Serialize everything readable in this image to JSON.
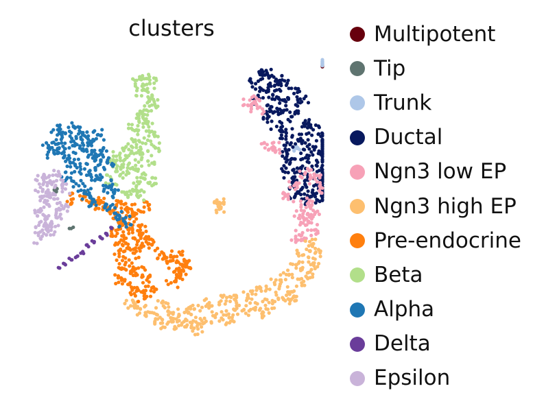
{
  "chart_data": {
    "type": "scatter",
    "title": "clusters",
    "xlabel": "",
    "ylabel": "",
    "axes_visible": false,
    "grid": false,
    "legend_position": "right",
    "series": [
      {
        "name": "Multipotent",
        "color": "#67000d",
        "points": [
          [
            8.3,
            8.1
          ],
          [
            8.35,
            8.05
          ]
        ]
      },
      {
        "name": "Tip",
        "color": "#5f7470",
        "points": [
          [
            -6.2,
            0.6
          ],
          [
            -6.25,
            0.5
          ],
          [
            -4.7,
            0.4
          ],
          [
            -5.4,
            -1.8
          ]
        ]
      },
      {
        "name": "Trunk",
        "color": "#aec7e8",
        "points": [
          [
            7.8,
            8.3
          ],
          [
            8.0,
            8.35
          ],
          [
            8.15,
            8.2
          ],
          [
            8.3,
            8.25
          ],
          [
            7.9,
            8.15
          ],
          [
            6.3,
            3.2
          ],
          [
            6.4,
            3.1
          ],
          [
            6.2,
            3.0
          ]
        ]
      },
      {
        "name": "Ductal",
        "color": "#08195e",
        "points": [
          [
            4.5,
            7.7
          ],
          [
            4.8,
            7.6
          ],
          [
            5.3,
            7.2
          ],
          [
            5.8,
            6.9
          ],
          [
            4.2,
            7.0
          ],
          [
            4.6,
            6.6
          ],
          [
            5.1,
            6.3
          ],
          [
            5.6,
            6.0
          ],
          [
            6.2,
            6.4
          ],
          [
            6.6,
            5.9
          ],
          [
            5.0,
            5.6
          ],
          [
            5.5,
            5.2
          ],
          [
            6.1,
            5.0
          ],
          [
            6.7,
            4.6
          ],
          [
            7.2,
            4.2
          ],
          [
            7.6,
            3.8
          ],
          [
            8.0,
            3.5
          ],
          [
            5.3,
            4.4
          ],
          [
            5.8,
            4.0
          ],
          [
            6.4,
            3.6
          ],
          [
            7.0,
            3.3
          ],
          [
            7.5,
            2.9
          ],
          [
            5.6,
            2.6
          ],
          [
            6.0,
            2.2
          ],
          [
            6.5,
            1.8
          ],
          [
            7.0,
            1.4
          ],
          [
            7.5,
            1.0
          ],
          [
            7.9,
            1.5
          ],
          [
            6.1,
            1.0
          ],
          [
            6.6,
            0.6
          ],
          [
            7.2,
            0.3
          ],
          [
            7.7,
            0.1
          ],
          [
            5.9,
            1.6
          ],
          [
            6.8,
            2.5
          ],
          [
            7.4,
            2.0
          ],
          [
            7.9,
            2.6
          ],
          [
            8.2,
            3.2
          ],
          [
            8.4,
            1.1
          ],
          [
            5.2,
            6.9
          ],
          [
            4.9,
            5.0
          ],
          [
            6.0,
            3.3
          ],
          [
            6.3,
            0.3
          ],
          [
            7.0,
            0.0
          ],
          [
            8.1,
            0.5
          ],
          [
            4.4,
            6.1
          ]
        ]
      },
      {
        "name": "Ngn3 low EP",
        "color": "#f7a1b7",
        "points": [
          [
            3.9,
            6.0
          ],
          [
            4.1,
            5.8
          ],
          [
            4.3,
            5.5
          ],
          [
            4.8,
            3.3
          ],
          [
            5.2,
            3.1
          ],
          [
            6.8,
            1.6
          ],
          [
            7.3,
            1.2
          ],
          [
            6.2,
            0.8
          ],
          [
            6.9,
            -0.3
          ],
          [
            7.2,
            -0.7
          ],
          [
            7.0,
            -1.1
          ],
          [
            6.8,
            -1.6
          ],
          [
            6.6,
            -2.2
          ],
          [
            7.1,
            -1.9
          ],
          [
            6.4,
            -2.5
          ],
          [
            5.9,
            0.1
          ],
          [
            7.6,
            0.7
          ],
          [
            6.5,
            -1.0
          ]
        ]
      },
      {
        "name": "Ngn3 high EP",
        "color": "#fdbf6f",
        "points": [
          [
            7.1,
            -2.8
          ],
          [
            7.3,
            -3.3
          ],
          [
            7.2,
            -3.9
          ],
          [
            6.9,
            -4.5
          ],
          [
            6.6,
            -5.1
          ],
          [
            6.2,
            -5.6
          ],
          [
            5.6,
            -6.0
          ],
          [
            4.9,
            -6.3
          ],
          [
            4.2,
            -6.6
          ],
          [
            3.5,
            -6.8
          ],
          [
            2.8,
            -7.0
          ],
          [
            2.1,
            -7.2
          ],
          [
            1.4,
            -7.4
          ],
          [
            0.8,
            -7.5
          ],
          [
            0.2,
            -7.7
          ],
          [
            -0.4,
            -7.6
          ],
          [
            -0.9,
            -7.3
          ],
          [
            -1.3,
            -6.9
          ],
          [
            -1.8,
            -6.7
          ],
          [
            -2.3,
            -6.5
          ],
          [
            1.0,
            -6.7
          ],
          [
            1.7,
            -6.4
          ],
          [
            2.4,
            -6.2
          ],
          [
            3.1,
            -6.1
          ],
          [
            3.8,
            -5.9
          ],
          [
            4.5,
            -5.6
          ],
          [
            5.2,
            -5.2
          ],
          [
            5.8,
            -4.6
          ],
          [
            6.3,
            -4.0
          ],
          [
            6.7,
            -3.4
          ],
          [
            0.5,
            -6.9
          ],
          [
            -0.1,
            -7.0
          ],
          [
            -0.6,
            -6.5
          ],
          [
            1.2,
            -7.9
          ],
          [
            3.0,
            -7.4
          ],
          [
            4.6,
            -6.9
          ],
          [
            6.0,
            -6.2
          ],
          [
            2.2,
            -0.3
          ],
          [
            2.4,
            -0.5
          ]
        ]
      },
      {
        "name": "Pre-endocrine",
        "color": "#ff7f0e",
        "points": [
          [
            -2.8,
            -0.3
          ],
          [
            -2.4,
            -0.6
          ],
          [
            -2.0,
            -0.9
          ],
          [
            -1.6,
            -0.5
          ],
          [
            -2.6,
            -1.2
          ],
          [
            -2.2,
            -1.6
          ],
          [
            -1.8,
            -1.9
          ],
          [
            -2.4,
            -2.1
          ],
          [
            -2.8,
            -2.5
          ],
          [
            -2.5,
            -3.0
          ],
          [
            -2.1,
            -3.3
          ],
          [
            -1.7,
            -2.7
          ],
          [
            -2.9,
            -3.5
          ],
          [
            -2.6,
            -4.0
          ],
          [
            -2.3,
            -4.4
          ],
          [
            -2.8,
            -4.8
          ],
          [
            -2.4,
            -5.2
          ],
          [
            -2.0,
            -5.6
          ],
          [
            -1.6,
            -5.9
          ],
          [
            -1.2,
            -5.4
          ],
          [
            -1.5,
            -2.3
          ],
          [
            -1.2,
            -2.8
          ],
          [
            -0.8,
            -3.4
          ],
          [
            -0.4,
            -3.9
          ],
          [
            0.1,
            -3.5
          ],
          [
            0.4,
            -4.1
          ],
          [
            0.3,
            -4.6
          ],
          [
            -0.2,
            -5.1
          ],
          [
            -4.6,
            -0.1
          ],
          [
            -4.2,
            -0.3
          ],
          [
            -3.8,
            -0.2
          ],
          [
            -3.4,
            -0.5
          ],
          [
            -3.1,
            -0.9
          ],
          [
            -2.9,
            -1.5
          ],
          [
            -5.3,
            0.0
          ],
          [
            -3.0,
            -2.1
          ],
          [
            -1.9,
            -4.2
          ],
          [
            -1.4,
            -4.8
          ],
          [
            0.0,
            -4.4
          ],
          [
            0.6,
            -4.0
          ]
        ]
      },
      {
        "name": "Beta",
        "color": "#b2df8a",
        "points": [
          [
            -2.0,
            7.2
          ],
          [
            -1.6,
            7.3
          ],
          [
            -1.3,
            7.0
          ],
          [
            -1.7,
            6.6
          ],
          [
            -1.4,
            6.2
          ],
          [
            -1.2,
            5.7
          ],
          [
            -1.6,
            5.4
          ],
          [
            -1.9,
            5.0
          ],
          [
            -1.5,
            4.6
          ],
          [
            -1.2,
            4.1
          ],
          [
            -1.6,
            3.7
          ],
          [
            -2.0,
            3.3
          ],
          [
            -2.4,
            3.0
          ],
          [
            -1.8,
            2.7
          ],
          [
            -1.4,
            2.3
          ],
          [
            -2.6,
            2.4
          ],
          [
            -3.0,
            2.0
          ],
          [
            -2.7,
            1.6
          ],
          [
            -2.2,
            1.9
          ],
          [
            -1.7,
            1.5
          ],
          [
            -1.3,
            1.0
          ],
          [
            -2.0,
            0.8
          ],
          [
            -2.5,
            0.4
          ],
          [
            -1.8,
            0.2
          ],
          [
            -3.2,
            2.6
          ],
          [
            -3.3,
            1.2
          ],
          [
            -1.1,
            3.2
          ],
          [
            -2.2,
            4.2
          ]
        ]
      },
      {
        "name": "Alpha",
        "color": "#1f77b4",
        "points": [
          [
            -6.1,
            4.2
          ],
          [
            -5.7,
            4.0
          ],
          [
            -5.2,
            4.3
          ],
          [
            -4.8,
            3.9
          ],
          [
            -4.4,
            3.5
          ],
          [
            -4.0,
            3.9
          ],
          [
            -5.9,
            3.4
          ],
          [
            -5.5,
            3.1
          ],
          [
            -5.1,
            3.3
          ],
          [
            -4.6,
            3.0
          ],
          [
            -4.2,
            2.6
          ],
          [
            -3.8,
            2.9
          ],
          [
            -3.5,
            2.2
          ],
          [
            -6.3,
            2.8
          ],
          [
            -5.8,
            2.5
          ],
          [
            -5.3,
            2.2
          ],
          [
            -4.9,
            1.8
          ],
          [
            -4.4,
            1.5
          ],
          [
            -4.0,
            1.2
          ],
          [
            -3.6,
            0.8
          ],
          [
            -3.2,
            0.4
          ],
          [
            -3.4,
            -0.6
          ],
          [
            -2.9,
            -1.0
          ],
          [
            -2.6,
            -1.4
          ],
          [
            -5.0,
            0.8
          ],
          [
            -4.6,
            0.3
          ],
          [
            -4.3,
            -0.2
          ],
          [
            -3.9,
            2.1
          ],
          [
            -5.6,
            1.3
          ],
          [
            -6.6,
            3.1
          ]
        ]
      },
      {
        "name": "Delta",
        "color": "#6a3d9a",
        "points": [
          [
            -3.9,
            -2.3
          ],
          [
            -4.2,
            -2.6
          ],
          [
            -4.5,
            -2.9
          ],
          [
            -4.8,
            -3.2
          ],
          [
            -5.1,
            -3.5
          ],
          [
            -5.4,
            -3.7
          ],
          [
            -5.7,
            -4.0
          ],
          [
            -6.0,
            -4.2
          ],
          [
            -3.6,
            -2.1
          ],
          [
            -3.3,
            -1.8
          ]
        ]
      },
      {
        "name": "Epsilon",
        "color": "#c9b3d9",
        "points": [
          [
            -6.9,
            1.3
          ],
          [
            -6.5,
            1.1
          ],
          [
            -6.1,
            1.4
          ],
          [
            -7.0,
            0.7
          ],
          [
            -6.6,
            0.4
          ],
          [
            -6.3,
            0.0
          ],
          [
            -5.9,
            -0.4
          ],
          [
            -6.8,
            -0.2
          ],
          [
            -7.1,
            -0.7
          ],
          [
            -6.7,
            -1.1
          ],
          [
            -6.4,
            -1.5
          ],
          [
            -6.9,
            -1.9
          ],
          [
            -7.0,
            -2.4
          ],
          [
            -6.6,
            -2.0
          ],
          [
            -6.2,
            -1.0
          ],
          [
            -5.7,
            0.6
          ]
        ]
      }
    ]
  }
}
